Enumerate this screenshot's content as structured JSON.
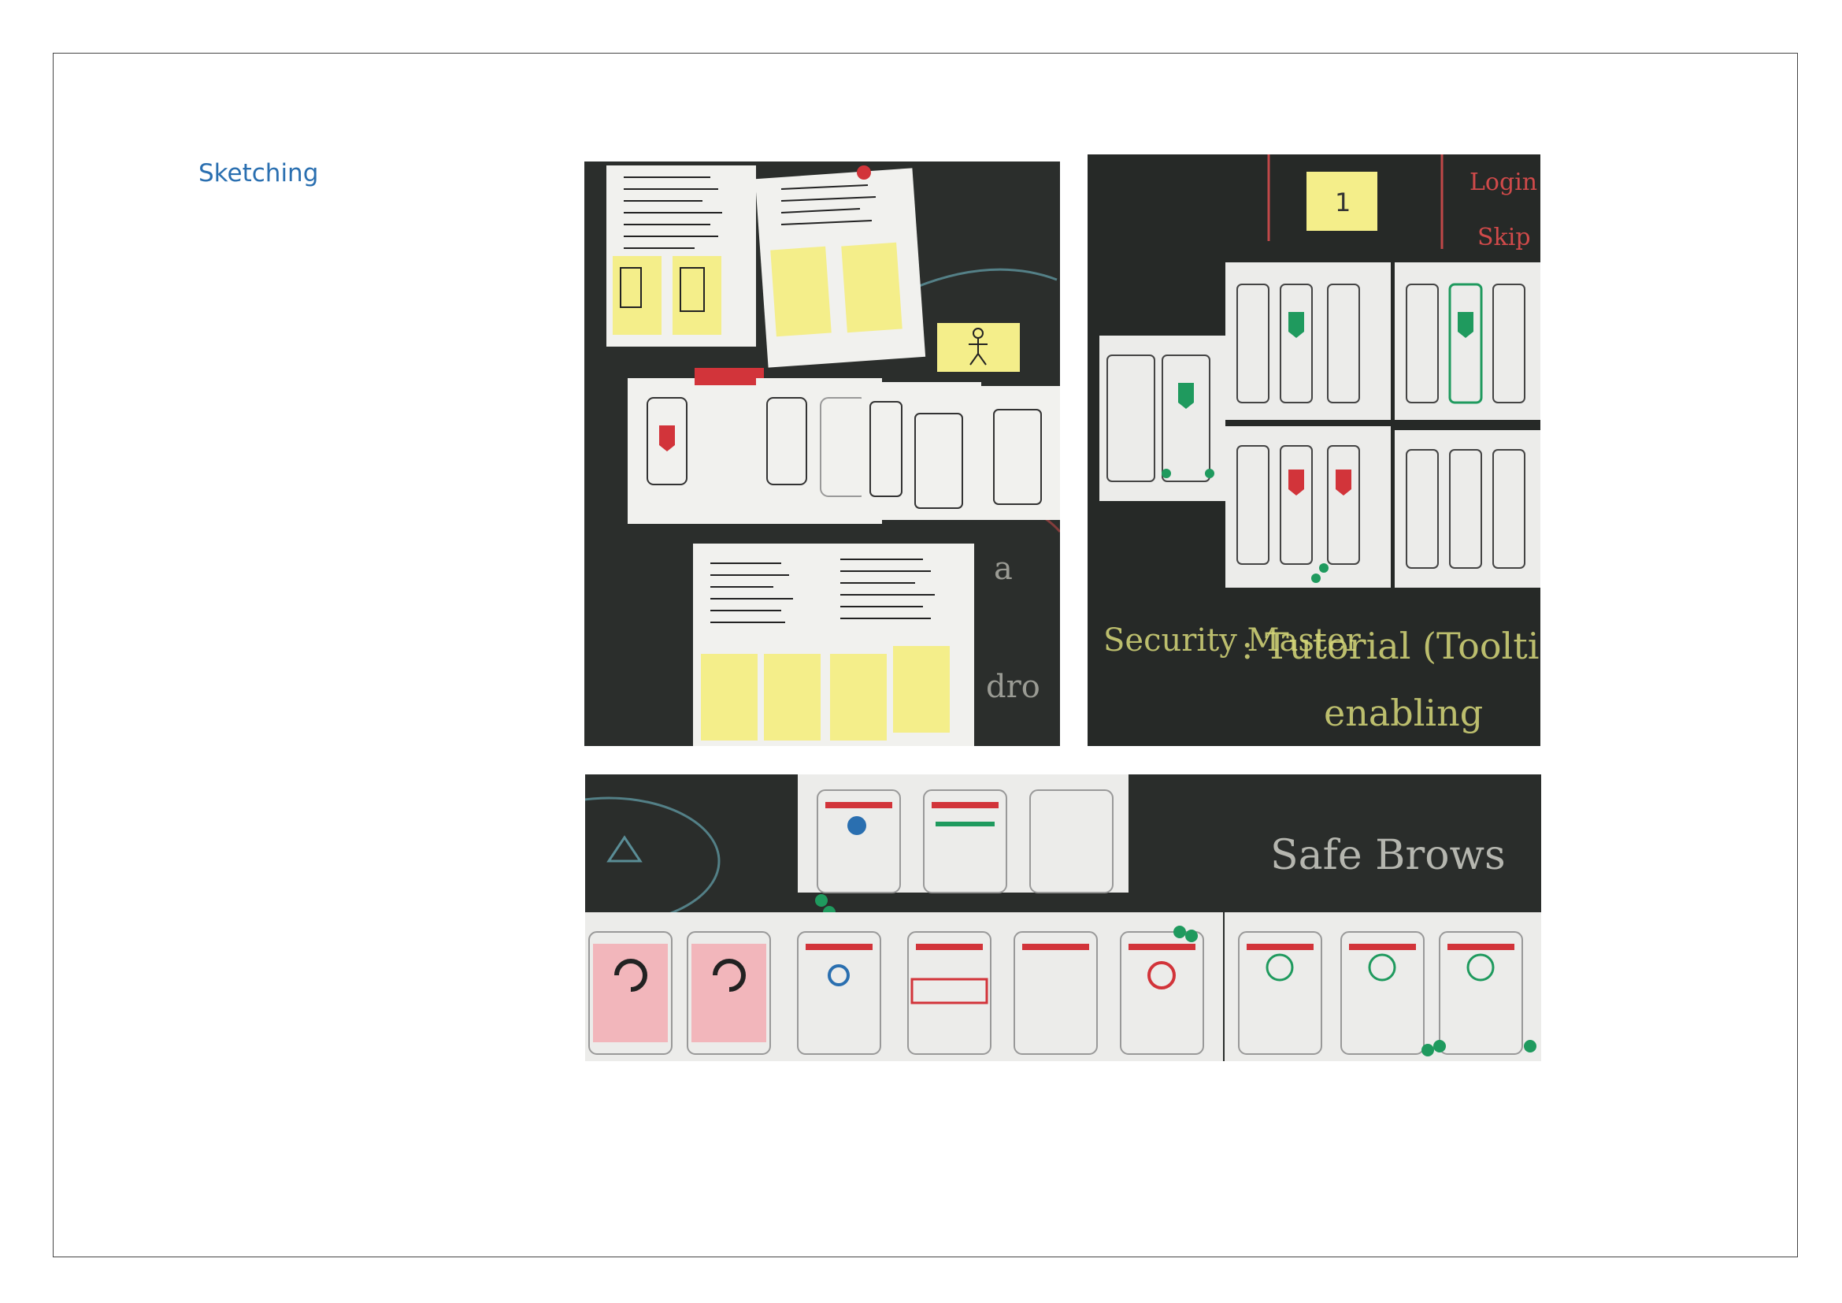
{
  "page": {
    "heading": "Sketching"
  },
  "photos": [
    {
      "name": "sketch-photo-paper-notes",
      "caption": ""
    },
    {
      "name": "sketch-photo-chalkboard-screens",
      "caption": ""
    },
    {
      "name": "sketch-photo-wireframe-strip",
      "caption": ""
    }
  ],
  "chalk_text": {
    "security_master": "Security Master",
    "tutorial_tooltip": ": Tutorial (Toolti",
    "enabling": "enabling",
    "safe_browsing": "Safe Brows",
    "login": "Login",
    "skip": "Skip",
    "sticky_number": "1"
  },
  "colors": {
    "heading": "#2a6fb0",
    "chalkboard": "#2a2d2b",
    "sticky_note": "#f4ee8a",
    "accent_red": "#d2343a",
    "accent_green": "#1f9a5e"
  }
}
